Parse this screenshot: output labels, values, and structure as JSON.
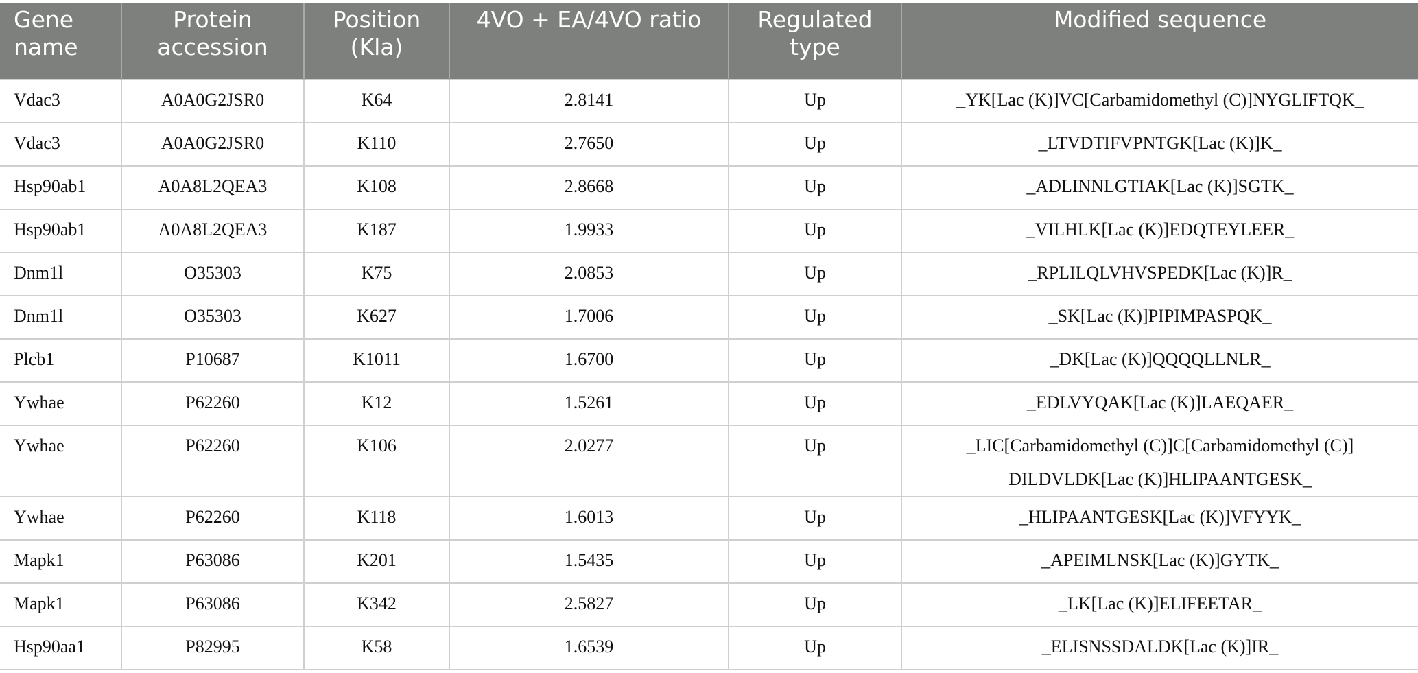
{
  "table": {
    "header": [
      "Gene name",
      "Protein accession",
      "Position (Kla)",
      "4VO + EA/4VO ratio",
      "Regulated type",
      "Modified sequence"
    ],
    "rows": [
      [
        "Vdac3",
        "A0A0G2JSR0",
        "K64",
        "2.8141",
        "Up",
        "_YK[Lac (K)]VC[Carbamidomethyl (C)]NYGLIFTQK_"
      ],
      [
        "Vdac3",
        "A0A0G2JSR0",
        "K110",
        "2.7650",
        "Up",
        "_LTVDTIFVPNTGK[Lac (K)]K_"
      ],
      [
        "Hsp90ab1",
        "A0A8L2QEA3",
        "K108",
        "2.8668",
        "Up",
        "_ADLINNLGTIAK[Lac (K)]SGTK_"
      ],
      [
        "Hsp90ab1",
        "A0A8L2QEA3",
        "K187",
        "1.9933",
        "Up",
        "_VILHLK[Lac (K)]EDQTEYLEER_"
      ],
      [
        "Dnm1l",
        "O35303",
        "K75",
        "2.0853",
        "Up",
        "_RPLILQLVHVSPEDK[Lac (K)]R_"
      ],
      [
        "Dnm1l",
        "O35303",
        "K627",
        "1.7006",
        "Up",
        "_SK[Lac (K)]PIPIMPASPQK_"
      ],
      [
        "Plcb1",
        "P10687",
        "K1011",
        "1.6700",
        "Up",
        "_DK[Lac (K)]QQQQLLNLR_"
      ],
      [
        "Ywhae",
        "P62260",
        "K12",
        "1.5261",
        "Up",
        "_EDLVYQAK[Lac (K)]LAEQAER_"
      ],
      [
        "Ywhae",
        "P62260",
        "K106",
        "2.0277",
        "Up",
        "_LIC[Carbamidomethyl (C)]C[Carbamidomethyl (C)] DILDVLDK[Lac (K)]HLIPAANTGESK_"
      ],
      [
        "Ywhae",
        "P62260",
        "K118",
        "1.6013",
        "Up",
        "_HLIPAANTGESK[Lac (K)]VFYYK_"
      ],
      [
        "Mapk1",
        "P63086",
        "K201",
        "1.5435",
        "Up",
        "_APEIMLNSK[Lac (K)]GYTK_"
      ],
      [
        "Mapk1",
        "P63086",
        "K342",
        "2.5827",
        "Up",
        "_LK[Lac (K)]ELIFEETAR_"
      ],
      [
        "Hsp90aa1",
        "P82995",
        "K58",
        "1.6539",
        "Up",
        "_ELISNSSDALDK[Lac (K)]IR_"
      ]
    ]
  }
}
